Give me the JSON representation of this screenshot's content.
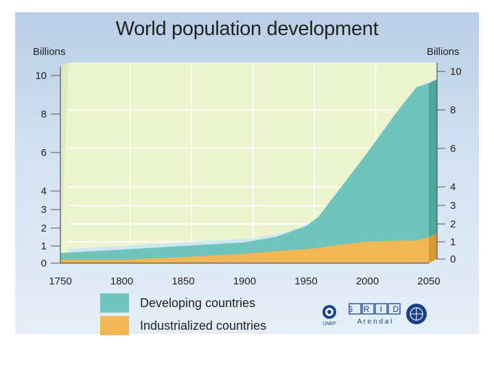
{
  "chart_data": {
    "type": "area",
    "title": "World population development",
    "ylabel_left": "Billions",
    "ylabel_right": "Billions",
    "x": [
      1750,
      1800,
      1850,
      1900,
      1925,
      1950,
      1960,
      1975,
      2000,
      2025,
      2040,
      2050
    ],
    "series": [
      {
        "name": "Developing countries",
        "values": [
          0.59,
          0.79,
          1.0,
          1.2,
          1.5,
          2.1,
          2.6,
          3.9,
          6.0,
          8.2,
          9.4,
          9.6
        ]
      },
      {
        "name": "Industrialized countries",
        "values": [
          0.2,
          0.2,
          0.35,
          0.55,
          0.7,
          0.82,
          0.9,
          1.05,
          1.25,
          1.3,
          1.3,
          1.5
        ]
      }
    ],
    "ylim": [
      0,
      10
    ],
    "xlim": [
      1750,
      2050
    ],
    "y_scale": "broken: 0–4 compressed, 4–10 expanded",
    "x_ticks": [
      "1750",
      "1800",
      "1850",
      "1900",
      "1950",
      "2000",
      "2050"
    ],
    "y_ticks": [
      "0",
      "1",
      "2",
      "3",
      "4",
      "6",
      "8",
      "10"
    ],
    "grid": true,
    "legend_position": "bottom-left",
    "colors": {
      "developing": "#6fc4bb",
      "industrialized": "#f2b654",
      "plot_background": "#ecf3cf",
      "gridline": "#ffffff"
    }
  },
  "logos": {
    "unep_text": "UNEP",
    "grid_text": "G R I D",
    "arendal_text": "A r e n d a l"
  }
}
